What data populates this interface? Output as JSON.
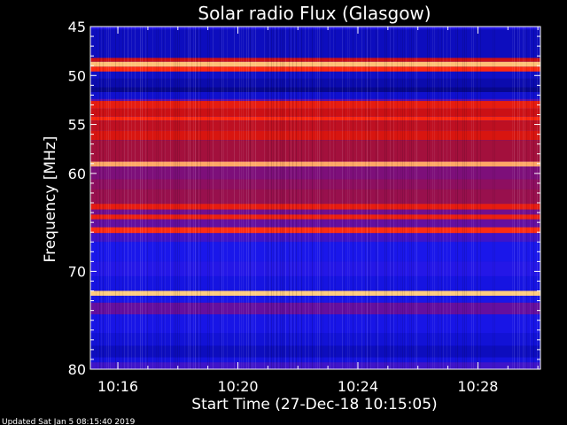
{
  "chart_data": {
    "type": "heatmap",
    "title": "Solar radio Flux (Glasgow)",
    "ylabel": "Frequency [MHz]",
    "xlabel": "Start Time (27-Dec-18 10:15:05)",
    "ylim": [
      45,
      80
    ],
    "y_axis_inverted": true,
    "y_ticks": [
      45,
      50,
      55,
      60,
      70,
      80
    ],
    "x_range": [
      "10:15:05",
      "10:30:05"
    ],
    "x_ticks": [
      "10:16",
      "10:20",
      "10:24",
      "10:28"
    ],
    "colormap": [
      "#000060",
      "#1010d0",
      "#1c18f0",
      "#6a0e9a",
      "#a01040",
      "#d01010",
      "#ff2a10",
      "#ffd888"
    ],
    "bands": [
      {
        "f0": 45.0,
        "f1": 45.3,
        "level": 0.3
      },
      {
        "f0": 45.3,
        "f1": 48.2,
        "level": 0.12
      },
      {
        "f0": 48.2,
        "f1": 48.6,
        "level": 0.7
      },
      {
        "f0": 48.6,
        "f1": 49.1,
        "level": 0.98
      },
      {
        "f0": 49.1,
        "f1": 49.6,
        "level": 0.85
      },
      {
        "f0": 49.6,
        "f1": 50.3,
        "level": 0.13
      },
      {
        "f0": 50.3,
        "f1": 51.2,
        "level": 0.1
      },
      {
        "f0": 51.2,
        "f1": 51.7,
        "level": 0.06
      },
      {
        "f0": 51.7,
        "f1": 52.4,
        "level": 0.14
      },
      {
        "f0": 52.4,
        "f1": 52.6,
        "level": 0.4
      },
      {
        "f0": 52.6,
        "f1": 53.4,
        "level": 0.78
      },
      {
        "f0": 53.4,
        "f1": 54.2,
        "level": 0.7
      },
      {
        "f0": 54.2,
        "f1": 54.6,
        "level": 0.84
      },
      {
        "f0": 54.6,
        "f1": 55.6,
        "level": 0.66
      },
      {
        "f0": 55.6,
        "f1": 56.6,
        "level": 0.74
      },
      {
        "f0": 56.6,
        "f1": 58.8,
        "level": 0.58
      },
      {
        "f0": 58.8,
        "f1": 59.3,
        "level": 0.96
      },
      {
        "f0": 59.3,
        "f1": 60.6,
        "level": 0.48
      },
      {
        "f0": 60.6,
        "f1": 61.6,
        "level": 0.52
      },
      {
        "f0": 61.6,
        "f1": 63.1,
        "level": 0.55
      },
      {
        "f0": 63.1,
        "f1": 63.7,
        "level": 0.78
      },
      {
        "f0": 63.7,
        "f1": 64.2,
        "level": 0.45
      },
      {
        "f0": 64.2,
        "f1": 64.7,
        "level": 0.8
      },
      {
        "f0": 64.7,
        "f1": 65.5,
        "level": 0.42
      },
      {
        "f0": 65.5,
        "f1": 66.1,
        "level": 0.86
      },
      {
        "f0": 66.1,
        "f1": 67.0,
        "level": 0.35
      },
      {
        "f0": 67.0,
        "f1": 69.0,
        "level": 0.26
      },
      {
        "f0": 69.0,
        "f1": 70.5,
        "level": 0.3
      },
      {
        "f0": 70.5,
        "f1": 72.0,
        "level": 0.22
      },
      {
        "f0": 72.0,
        "f1": 72.5,
        "level": 0.99
      },
      {
        "f0": 72.5,
        "f1": 73.2,
        "level": 0.25
      },
      {
        "f0": 73.2,
        "f1": 74.4,
        "level": 0.42
      },
      {
        "f0": 74.4,
        "f1": 76.3,
        "level": 0.24
      },
      {
        "f0": 76.3,
        "f1": 77.6,
        "level": 0.17
      },
      {
        "f0": 77.6,
        "f1": 78.8,
        "level": 0.12
      },
      {
        "f0": 78.8,
        "f1": 79.3,
        "level": 0.2
      },
      {
        "f0": 79.3,
        "f1": 80.0,
        "level": 0.35
      }
    ]
  },
  "footer": {
    "updated": "Updated Sat Jan  5 08:15:40 2019"
  }
}
